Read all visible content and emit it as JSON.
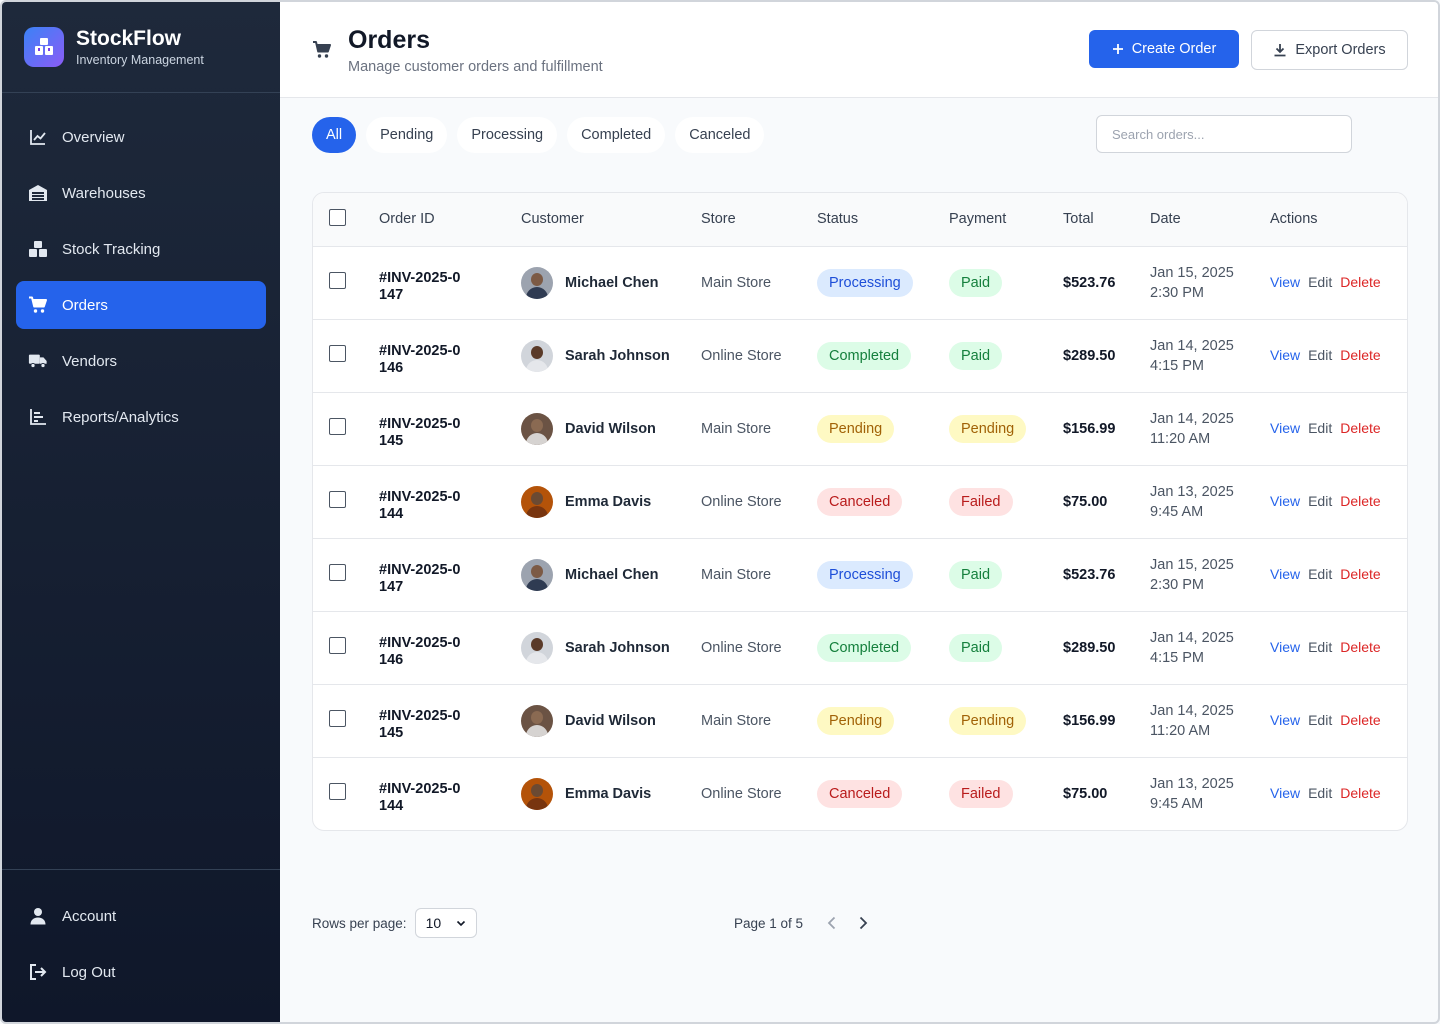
{
  "brand": {
    "name": "StockFlow",
    "subtitle": "Inventory Management"
  },
  "sidebar": {
    "items": [
      {
        "label": "Overview",
        "icon": "chart-line-icon",
        "active": false
      },
      {
        "label": "Warehouses",
        "icon": "warehouse-icon",
        "active": false
      },
      {
        "label": "Stock Tracking",
        "icon": "boxes-icon",
        "active": false
      },
      {
        "label": "Orders",
        "icon": "cart-icon",
        "active": true
      },
      {
        "label": "Vendors",
        "icon": "truck-icon",
        "active": false
      },
      {
        "label": "Reports/Analytics",
        "icon": "bar-chart-icon",
        "active": false
      }
    ],
    "bottom": [
      {
        "label": "Account",
        "icon": "user-icon"
      },
      {
        "label": "Log Out",
        "icon": "logout-icon"
      }
    ]
  },
  "header": {
    "title": "Orders",
    "subtitle": "Manage customer orders and fulfillment",
    "create_label": "Create Order",
    "export_label": "Export Orders"
  },
  "filters": [
    "All",
    "Pending",
    "Processing",
    "Completed",
    "Canceled"
  ],
  "search": {
    "placeholder": "Search orders..."
  },
  "table": {
    "columns": [
      "Order ID",
      "Customer",
      "Store",
      "Status",
      "Payment",
      "Total",
      "Date",
      "Actions"
    ],
    "actions": {
      "view": "View",
      "edit": "Edit",
      "delete": "Delete"
    },
    "rows": [
      {
        "id": "#INV-2025-0\n147",
        "customer": "Michael Chen",
        "store": "Main Store",
        "status": "Processing",
        "payment": "Paid",
        "total": "$523.76",
        "date": "Jan 15, 2025\n2:30 PM"
      },
      {
        "id": "#INV-2025-0\n146",
        "customer": "Sarah Johnson",
        "store": "Online Store",
        "status": "Completed",
        "payment": "Paid",
        "total": "$289.50",
        "date": "Jan 14, 2025\n4:15 PM"
      },
      {
        "id": "#INV-2025-0\n145",
        "customer": "David Wilson",
        "store": "Main Store",
        "status": "Pending",
        "payment": "Pending",
        "total": "$156.99",
        "date": "Jan 14, 2025\n11:20 AM"
      },
      {
        "id": "#INV-2025-0\n144",
        "customer": "Emma Davis",
        "store": "Online Store",
        "status": "Canceled",
        "payment": "Failed",
        "total": "$75.00",
        "date": "Jan 13, 2025\n9:45 AM"
      },
      {
        "id": "#INV-2025-0\n147",
        "customer": "Michael Chen",
        "store": "Main Store",
        "status": "Processing",
        "payment": "Paid",
        "total": "$523.76",
        "date": "Jan 15, 2025\n2:30 PM"
      },
      {
        "id": "#INV-2025-0\n146",
        "customer": "Sarah Johnson",
        "store": "Online Store",
        "status": "Completed",
        "payment": "Paid",
        "total": "$289.50",
        "date": "Jan 14, 2025\n4:15 PM"
      },
      {
        "id": "#INV-2025-0\n145",
        "customer": "David Wilson",
        "store": "Main Store",
        "status": "Pending",
        "payment": "Pending",
        "total": "$156.99",
        "date": "Jan 14, 2025\n11:20 AM"
      },
      {
        "id": "#INV-2025-0\n144",
        "customer": "Emma Davis",
        "store": "Online Store",
        "status": "Canceled",
        "payment": "Failed",
        "total": "$75.00",
        "date": "Jan 13, 2025\n9:45 AM"
      }
    ]
  },
  "pagination": {
    "rows_label": "Rows per page:",
    "rows_value": "10",
    "page_text": "Page 1 of 5"
  },
  "colors": {
    "accent": "#2563eb",
    "sidebar_top": "#1e293b",
    "sidebar_bottom": "#0f172a"
  }
}
